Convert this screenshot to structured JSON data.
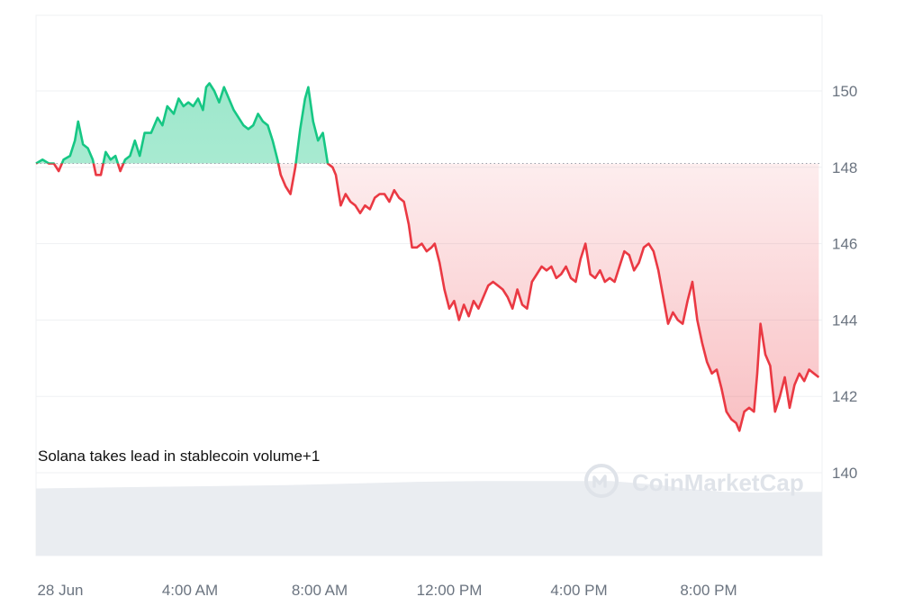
{
  "chart_data": {
    "type": "area",
    "title": "",
    "xlabel": "",
    "ylabel": "",
    "baseline": 148.1,
    "ylim": [
      140,
      152
    ],
    "yticks": [
      140,
      142,
      144,
      146,
      148,
      150
    ],
    "xticks": [
      {
        "t": 0,
        "label": "28 Jun"
      },
      {
        "t": 4,
        "label": "4:00 AM"
      },
      {
        "t": 8,
        "label": "8:00 AM"
      },
      {
        "t": 12,
        "label": "12:00 PM"
      },
      {
        "t": 16,
        "label": "4:00 PM"
      },
      {
        "t": 20,
        "label": "8:00 PM"
      }
    ],
    "x_unit": "hours",
    "xlim": [
      -0.75,
      23.5
    ],
    "series": [
      {
        "points": [
          [
            -0.75,
            148.1
          ],
          [
            -0.55,
            148.2
          ],
          [
            -0.35,
            148.1
          ],
          [
            -0.2,
            148.1
          ],
          [
            -0.05,
            147.9
          ],
          [
            0.1,
            148.2
          ],
          [
            0.3,
            148.3
          ],
          [
            0.45,
            148.7
          ],
          [
            0.55,
            149.2
          ],
          [
            0.7,
            148.6
          ],
          [
            0.85,
            148.5
          ],
          [
            1.0,
            148.2
          ],
          [
            1.1,
            147.8
          ],
          [
            1.25,
            147.8
          ],
          [
            1.4,
            148.4
          ],
          [
            1.55,
            148.2
          ],
          [
            1.7,
            148.3
          ],
          [
            1.85,
            147.9
          ],
          [
            2.0,
            148.2
          ],
          [
            2.15,
            148.3
          ],
          [
            2.3,
            148.7
          ],
          [
            2.45,
            148.3
          ],
          [
            2.6,
            148.9
          ],
          [
            2.8,
            148.9
          ],
          [
            3.0,
            149.3
          ],
          [
            3.15,
            149.1
          ],
          [
            3.3,
            149.6
          ],
          [
            3.5,
            149.4
          ],
          [
            3.65,
            149.8
          ],
          [
            3.8,
            149.6
          ],
          [
            3.95,
            149.7
          ],
          [
            4.1,
            149.6
          ],
          [
            4.25,
            149.8
          ],
          [
            4.4,
            149.5
          ],
          [
            4.5,
            150.1
          ],
          [
            4.6,
            150.2
          ],
          [
            4.75,
            150.0
          ],
          [
            4.9,
            149.7
          ],
          [
            5.05,
            150.1
          ],
          [
            5.2,
            149.8
          ],
          [
            5.35,
            149.5
          ],
          [
            5.5,
            149.3
          ],
          [
            5.65,
            149.1
          ],
          [
            5.8,
            149.0
          ],
          [
            5.95,
            149.1
          ],
          [
            6.1,
            149.4
          ],
          [
            6.25,
            149.2
          ],
          [
            6.4,
            149.1
          ],
          [
            6.55,
            148.7
          ],
          [
            6.7,
            148.2
          ],
          [
            6.8,
            147.8
          ],
          [
            6.95,
            147.5
          ],
          [
            7.1,
            147.3
          ],
          [
            7.25,
            148.0
          ],
          [
            7.4,
            149.0
          ],
          [
            7.55,
            149.8
          ],
          [
            7.65,
            150.1
          ],
          [
            7.8,
            149.2
          ],
          [
            7.95,
            148.7
          ],
          [
            8.1,
            148.9
          ],
          [
            8.25,
            148.1
          ],
          [
            8.4,
            148.0
          ],
          [
            8.5,
            147.8
          ],
          [
            8.65,
            147.0
          ],
          [
            8.8,
            147.3
          ],
          [
            8.95,
            147.1
          ],
          [
            9.1,
            147.0
          ],
          [
            9.25,
            146.8
          ],
          [
            9.4,
            147.0
          ],
          [
            9.55,
            146.9
          ],
          [
            9.7,
            147.2
          ],
          [
            9.85,
            147.3
          ],
          [
            10.0,
            147.3
          ],
          [
            10.15,
            147.1
          ],
          [
            10.3,
            147.4
          ],
          [
            10.45,
            147.2
          ],
          [
            10.6,
            147.1
          ],
          [
            10.75,
            146.5
          ],
          [
            10.85,
            145.9
          ],
          [
            11.0,
            145.9
          ],
          [
            11.15,
            146.0
          ],
          [
            11.3,
            145.8
          ],
          [
            11.45,
            145.9
          ],
          [
            11.55,
            146.0
          ],
          [
            11.7,
            145.5
          ],
          [
            11.85,
            144.8
          ],
          [
            12.0,
            144.3
          ],
          [
            12.15,
            144.5
          ],
          [
            12.3,
            144.0
          ],
          [
            12.45,
            144.4
          ],
          [
            12.6,
            144.1
          ],
          [
            12.75,
            144.5
          ],
          [
            12.9,
            144.3
          ],
          [
            13.05,
            144.6
          ],
          [
            13.2,
            144.9
          ],
          [
            13.35,
            145.0
          ],
          [
            13.5,
            144.9
          ],
          [
            13.65,
            144.8
          ],
          [
            13.8,
            144.6
          ],
          [
            13.95,
            144.3
          ],
          [
            14.1,
            144.8
          ],
          [
            14.25,
            144.4
          ],
          [
            14.4,
            144.3
          ],
          [
            14.55,
            145.0
          ],
          [
            14.7,
            145.2
          ],
          [
            14.85,
            145.4
          ],
          [
            15.0,
            145.3
          ],
          [
            15.15,
            145.4
          ],
          [
            15.3,
            145.1
          ],
          [
            15.45,
            145.2
          ],
          [
            15.6,
            145.4
          ],
          [
            15.75,
            145.1
          ],
          [
            15.9,
            145.0
          ],
          [
            16.05,
            145.6
          ],
          [
            16.2,
            146.0
          ],
          [
            16.35,
            145.2
          ],
          [
            16.5,
            145.1
          ],
          [
            16.65,
            145.3
          ],
          [
            16.8,
            145.0
          ],
          [
            16.95,
            145.1
          ],
          [
            17.1,
            145.0
          ],
          [
            17.25,
            145.4
          ],
          [
            17.4,
            145.8
          ],
          [
            17.55,
            145.7
          ],
          [
            17.7,
            145.3
          ],
          [
            17.85,
            145.5
          ],
          [
            18.0,
            145.9
          ],
          [
            18.15,
            146.0
          ],
          [
            18.3,
            145.8
          ],
          [
            18.45,
            145.3
          ],
          [
            18.6,
            144.6
          ],
          [
            18.75,
            143.9
          ],
          [
            18.9,
            144.2
          ],
          [
            19.05,
            144.0
          ],
          [
            19.2,
            143.9
          ],
          [
            19.35,
            144.5
          ],
          [
            19.5,
            145.0
          ],
          [
            19.65,
            144.0
          ],
          [
            19.8,
            143.4
          ],
          [
            19.95,
            142.9
          ],
          [
            20.1,
            142.6
          ],
          [
            20.25,
            142.7
          ],
          [
            20.4,
            142.2
          ],
          [
            20.55,
            141.6
          ],
          [
            20.7,
            141.4
          ],
          [
            20.85,
            141.3
          ],
          [
            20.95,
            141.1
          ],
          [
            21.1,
            141.6
          ],
          [
            21.25,
            141.7
          ],
          [
            21.4,
            141.6
          ],
          [
            21.5,
            142.6
          ],
          [
            21.6,
            143.9
          ],
          [
            21.75,
            143.1
          ],
          [
            21.9,
            142.8
          ],
          [
            22.05,
            141.6
          ],
          [
            22.2,
            142.0
          ],
          [
            22.35,
            142.5
          ],
          [
            22.5,
            141.7
          ],
          [
            22.65,
            142.3
          ],
          [
            22.8,
            142.6
          ],
          [
            22.95,
            142.4
          ],
          [
            23.1,
            142.7
          ],
          [
            23.25,
            142.6
          ],
          [
            23.4,
            142.5
          ]
        ],
        "volume": [
          [
            -0.75,
            0.81
          ],
          [
            1.0,
            0.82
          ],
          [
            3.0,
            0.83
          ],
          [
            5.0,
            0.84
          ],
          [
            7.0,
            0.85
          ],
          [
            9.0,
            0.87
          ],
          [
            11.0,
            0.89
          ],
          [
            13.0,
            0.9
          ],
          [
            15.0,
            0.9
          ],
          [
            17.0,
            0.9
          ],
          [
            18.5,
            0.85
          ],
          [
            19.5,
            0.8
          ],
          [
            20.5,
            0.77
          ],
          [
            21.5,
            0.76
          ],
          [
            22.5,
            0.77
          ],
          [
            23.5,
            0.77
          ]
        ]
      }
    ],
    "colors": {
      "up": "#16c784",
      "down": "#ea3943",
      "up_fill": "#16c784",
      "down_fill": "#ea3943",
      "volume": "#eaedf1",
      "grid": "#eff1f3",
      "axis_text": "#6b7480",
      "baseline": "#9aa1ab"
    },
    "annotation": "Solana takes lead in stablecoin volume+1",
    "watermark": "CoinMarketCap",
    "grid": true
  }
}
